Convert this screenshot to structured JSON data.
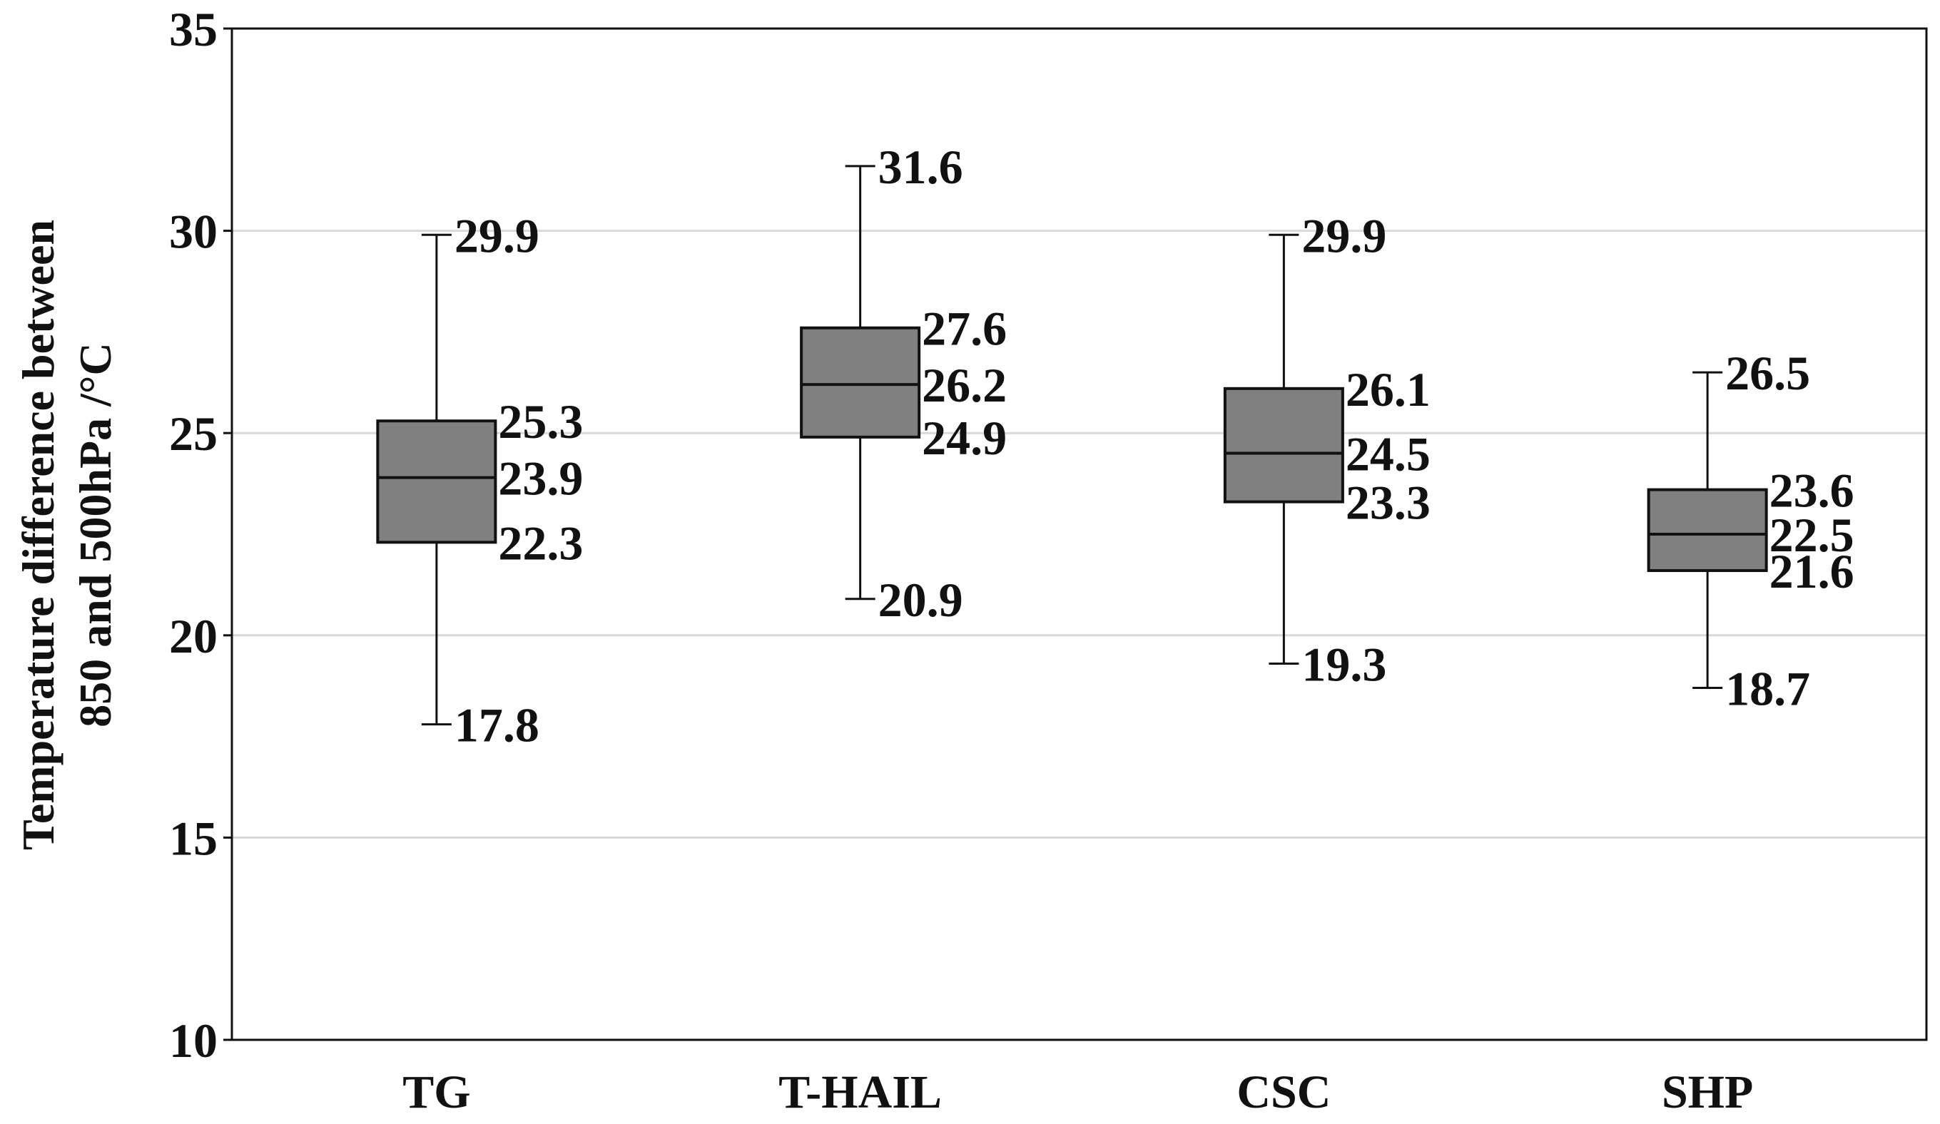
{
  "chart_data": {
    "type": "boxplot",
    "title": "",
    "xlabel": "",
    "ylabel_lines": [
      "Temperature difference between",
      "850 and 500hPa /°C"
    ],
    "ylim": [
      10,
      35
    ],
    "yticks": [
      10,
      15,
      20,
      25,
      30,
      35
    ],
    "grid": true,
    "categories": [
      "TG",
      "T-HAIL",
      "CSC",
      "SHP"
    ],
    "boxes": [
      {
        "name": "TG",
        "min": 17.8,
        "q1": 22.3,
        "median": 23.9,
        "q3": 25.3,
        "max": 29.9,
        "labels": {
          "min": "17.8",
          "q1": "22.3",
          "median": "23.9",
          "q3": "25.3",
          "max": "29.9"
        }
      },
      {
        "name": "T-HAIL",
        "min": 20.9,
        "q1": 24.9,
        "median": 26.2,
        "q3": 27.6,
        "max": 31.6,
        "labels": {
          "min": "20.9",
          "q1": "24.9",
          "median": "26.2",
          "q3": "27.6",
          "max": "31.6"
        }
      },
      {
        "name": "CSC",
        "min": 19.3,
        "q1": 23.3,
        "median": 24.5,
        "q3": 26.1,
        "max": 29.9,
        "labels": {
          "min": "19.3",
          "q1": "23.3",
          "median": "24.5",
          "q3": "26.1",
          "max": "29.9"
        }
      },
      {
        "name": "SHP",
        "min": 18.7,
        "q1": 21.6,
        "median": 22.5,
        "q3": 23.6,
        "max": 26.5,
        "labels": {
          "min": "18.7",
          "q1": "21.6",
          "median": "22.5",
          "q3": "23.6",
          "max": "26.5"
        }
      }
    ],
    "box_color": "#808080",
    "grid_color": "#d9d9d9",
    "line_color": "#111111"
  }
}
